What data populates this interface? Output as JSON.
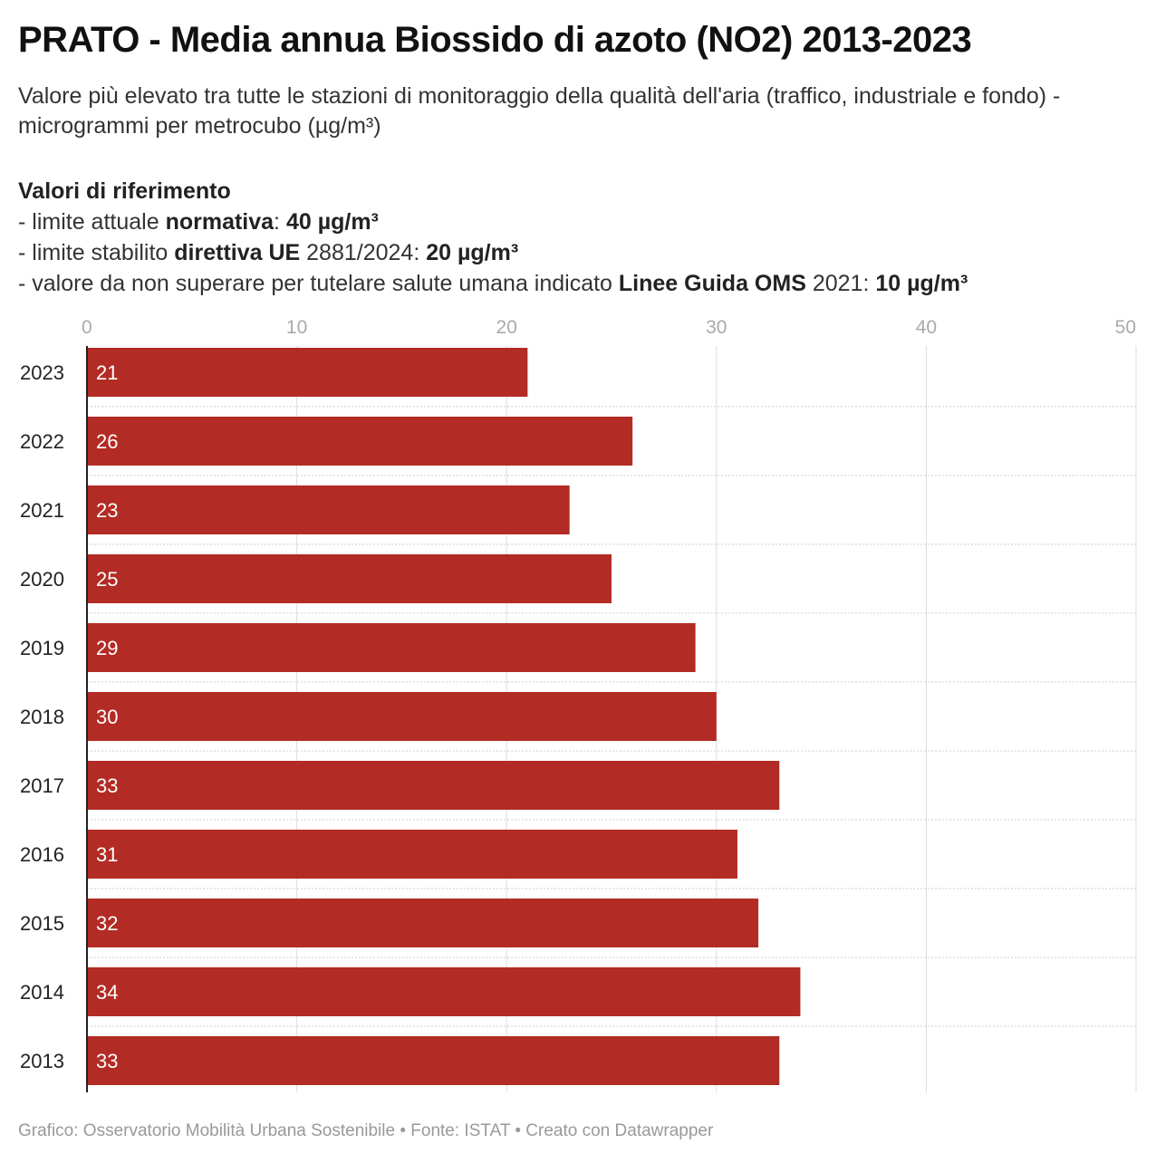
{
  "title": "PRATO - Media annua Biossido di azoto (NO2) 2013-2023",
  "subtitle": "Valore più elevato tra tutte le stazioni di monitoraggio della qualità dell'aria (traffico, industriale e fondo) - microgrammi per metrocubo (µg/m³)",
  "references": {
    "heading": "Valori di riferimento",
    "line1": {
      "prefix": "- limite attuale ",
      "bold1": "normativa",
      "middle": ": ",
      "bold2": "40 µg/m³"
    },
    "line2": {
      "prefix": "- limite stabilito ",
      "bold1": "direttiva UE",
      "middle": " 2881/2024: ",
      "bold2": "20 µg/m³"
    },
    "line3": {
      "prefix": "- valore da non superare per tutelare salute umana indicato ",
      "bold1": "Linee Guida OMS",
      "middle": " 2021: ",
      "bold2": "10 µg/m³"
    }
  },
  "footer": "Grafico: Osservatorio Mobilità Urbana Sostenibile • Fonte: ISTAT • Creato con Datawrapper",
  "chart_data": {
    "type": "bar",
    "orientation": "horizontal",
    "categories": [
      "2023",
      "2022",
      "2021",
      "2020",
      "2019",
      "2018",
      "2017",
      "2016",
      "2015",
      "2014",
      "2013"
    ],
    "values": [
      21,
      26,
      23,
      25,
      29,
      30,
      33,
      31,
      32,
      34,
      33
    ],
    "xlim": [
      0,
      50
    ],
    "xticks": [
      0,
      10,
      20,
      30,
      40,
      50
    ],
    "xaxis_position": "top",
    "grid": true,
    "bar_color": "#b22b24",
    "label_color": "#ffffff",
    "tick_color": "#aaaaaa",
    "grid_color": "#dddddd"
  }
}
